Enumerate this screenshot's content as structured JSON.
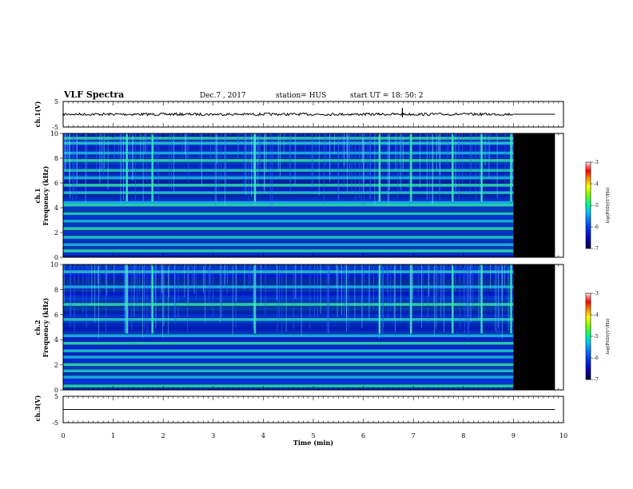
{
  "header": {
    "title": "VLF Spectra",
    "date": "Dec.7  , 2017",
    "station": "station= HUS",
    "start": "start  UT =   18: 50: 2"
  },
  "chart_data": [
    {
      "type": "line",
      "id": "ch1-waveform",
      "ylabel": "ch.1(V)",
      "ylim": [
        -5,
        5
      ],
      "yticks": [
        "5",
        "-5"
      ],
      "data_end_min": 9.0,
      "baseline_v": 0
    },
    {
      "type": "heatmap",
      "id": "ch1-spectrogram",
      "ylabel": "ch.1\nFrequency  (kHz)",
      "ylabel_lines": [
        "ch.1",
        "Frequency  (kHz)"
      ],
      "ylim": [
        0,
        10
      ],
      "yticks": [
        "0",
        "2",
        "4",
        "6",
        "8",
        "10"
      ],
      "data_end_min": 9.0,
      "colorbar": {
        "label": "log(PSD)(V²/Hz)",
        "ticks": [
          "-3",
          "-4",
          "-5",
          "-6",
          "-7"
        ],
        "range": [
          -7,
          -3
        ]
      },
      "bands_khz": [
        0.5,
        1.0,
        1.6,
        2.3,
        2.9,
        3.5,
        4.2,
        4.4,
        5.2,
        5.8,
        6.4,
        7.0,
        7.8,
        8.4,
        9.2,
        9.6
      ],
      "burst_times_min": [
        1.27,
        1.78,
        3.83,
        6.32,
        6.95,
        7.78,
        8.36,
        8.95
      ]
    },
    {
      "type": "heatmap",
      "id": "ch2-spectrogram",
      "ylabel": "ch.2\nFrequency  (kHz)",
      "ylabel_lines": [
        "ch.2",
        "Frequency  (kHz)"
      ],
      "ylim": [
        0,
        10
      ],
      "yticks": [
        "0",
        "2",
        "4",
        "6",
        "8",
        "10"
      ],
      "data_end_min": 9.0,
      "colorbar": {
        "label": "log(PSD)(V²/Hz)",
        "ticks": [
          "-3",
          "-4",
          "-5",
          "-6",
          "-7"
        ],
        "range": [
          -7,
          -3
        ]
      },
      "bands_khz": [
        0.3,
        1.0,
        1.5,
        2.0,
        2.6,
        3.1,
        3.7,
        4.3,
        5.6,
        6.8,
        8.2,
        9.4
      ],
      "burst_times_min": [
        1.27,
        1.78,
        3.83,
        6.32,
        6.95,
        7.78,
        8.36,
        8.95
      ]
    },
    {
      "type": "line",
      "id": "ch3-waveform",
      "ylabel": "ch.3(V)",
      "ylim": [
        -5,
        5
      ],
      "yticks": [
        "5",
        "-5"
      ],
      "baseline_v": 0,
      "xlabel": "Time  (min)",
      "xlim": [
        0,
        10
      ],
      "xticks": [
        "0",
        "1",
        "2",
        "3",
        "4",
        "5",
        "6",
        "7",
        "8",
        "9",
        "10"
      ]
    }
  ]
}
